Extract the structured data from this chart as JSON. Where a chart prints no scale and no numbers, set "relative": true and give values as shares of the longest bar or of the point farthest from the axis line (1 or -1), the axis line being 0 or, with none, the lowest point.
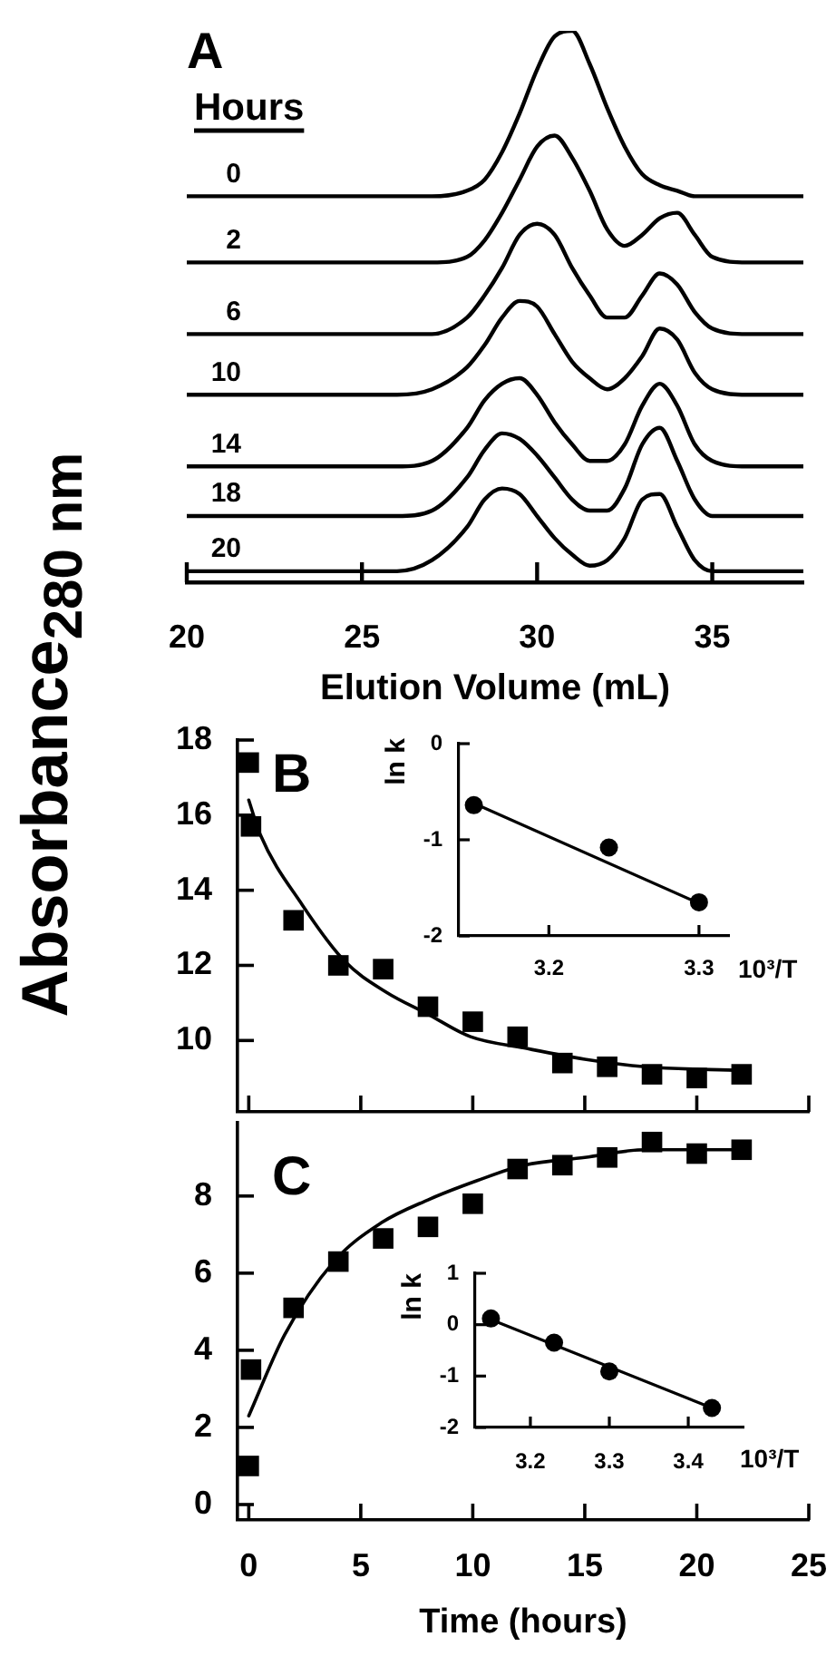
{
  "chart_data": [
    {
      "type": "line",
      "title": "A",
      "legend_title": "Hours",
      "xlabel": "Elution Volume (mL)",
      "relative": true,
      "tick_labels": "x",
      "xlim": [
        20,
        37.6
      ],
      "xticks": [
        20,
        25,
        30,
        35
      ],
      "x": [
        20,
        24,
        26,
        27,
        28,
        28.5,
        29,
        29.5,
        30,
        30.5,
        31,
        31.5,
        32,
        32.5,
        33,
        33.5,
        34,
        34.5,
        35,
        36,
        37.6
      ],
      "series": [
        {
          "name": "0",
          "color": "#000000",
          "values": [
            0.7,
            0.7,
            0.7,
            0.7,
            0.71,
            0.73,
            0.78,
            0.85,
            0.93,
            0.99,
            1.0,
            0.94,
            0.86,
            0.79,
            0.74,
            0.72,
            0.71,
            0.7,
            0.7,
            0.7,
            0.7
          ]
        },
        {
          "name": "2",
          "color": "#000000",
          "values": [
            0.58,
            0.58,
            0.58,
            0.58,
            0.59,
            0.62,
            0.67,
            0.73,
            0.79,
            0.81,
            0.77,
            0.71,
            0.64,
            0.61,
            0.63,
            0.66,
            0.67,
            0.63,
            0.59,
            0.58,
            0.58
          ]
        },
        {
          "name": "6",
          "color": "#000000",
          "values": [
            0.45,
            0.45,
            0.45,
            0.45,
            0.48,
            0.52,
            0.57,
            0.63,
            0.65,
            0.63,
            0.57,
            0.52,
            0.48,
            0.48,
            0.52,
            0.56,
            0.54,
            0.49,
            0.46,
            0.45,
            0.45
          ]
        },
        {
          "name": "10",
          "color": "#000000",
          "values": [
            0.34,
            0.34,
            0.34,
            0.35,
            0.39,
            0.43,
            0.48,
            0.51,
            0.5,
            0.45,
            0.4,
            0.37,
            0.35,
            0.37,
            0.41,
            0.46,
            0.44,
            0.38,
            0.35,
            0.34,
            0.34
          ]
        },
        {
          "name": "14",
          "color": "#000000",
          "values": [
            0.21,
            0.21,
            0.21,
            0.22,
            0.28,
            0.33,
            0.36,
            0.37,
            0.34,
            0.29,
            0.25,
            0.22,
            0.22,
            0.25,
            0.32,
            0.36,
            0.32,
            0.25,
            0.22,
            0.21,
            0.21
          ]
        },
        {
          "name": "18",
          "color": "#000000",
          "values": [
            0.12,
            0.12,
            0.12,
            0.13,
            0.19,
            0.24,
            0.27,
            0.26,
            0.23,
            0.19,
            0.15,
            0.13,
            0.13,
            0.17,
            0.25,
            0.28,
            0.22,
            0.15,
            0.12,
            0.12,
            0.12
          ]
        },
        {
          "name": "20",
          "color": "#000000",
          "values": [
            0.02,
            0.02,
            0.02,
            0.04,
            0.1,
            0.15,
            0.17,
            0.16,
            0.12,
            0.08,
            0.05,
            0.03,
            0.04,
            0.08,
            0.15,
            0.16,
            0.1,
            0.04,
            0.02,
            0.02,
            0.02
          ]
        }
      ]
    },
    {
      "type": "scatter",
      "title": "B",
      "ylabel": "Absorbance$_{280 nm}$",
      "tick_labels": "y",
      "xlim": [
        -0.5,
        25
      ],
      "xticks": [
        0,
        5,
        10,
        15,
        20,
        25
      ],
      "ylim": [
        8.1,
        18
      ],
      "yticks": [
        10,
        12,
        14,
        16,
        18
      ],
      "series": [
        {
          "type": "scatter",
          "marker": "square",
          "color": "#000000",
          "x": [
            0,
            0.1,
            2,
            4,
            6,
            8,
            10,
            12,
            14,
            16,
            18,
            20,
            22
          ],
          "values": [
            17.4,
            15.7,
            13.2,
            12.0,
            11.9,
            10.9,
            10.5,
            10.1,
            9.4,
            9.3,
            9.1,
            9.0,
            9.1
          ]
        },
        {
          "type": "line",
          "marker": "none",
          "color": "#000000",
          "x": [
            0,
            0.5,
            2.4,
            4.3,
            6.1,
            8,
            9.9,
            12.3,
            15,
            17.7,
            22
          ],
          "values": [
            16.4,
            15.5,
            13.6,
            12.1,
            11.3,
            10.7,
            10.1,
            9.8,
            9.5,
            9.3,
            9.2
          ]
        }
      ]
    },
    {
      "type": "scatter",
      "ylabel": "ln k",
      "xlabel": "10³/T",
      "xlim": [
        3.14,
        3.32
      ],
      "xticks": [
        3.2,
        3.3
      ],
      "ylim": [
        -2,
        0
      ],
      "yticks": [
        -2,
        -1,
        0
      ],
      "series": [
        {
          "type": "scatter",
          "marker": "circle",
          "color": "#000000",
          "x": [
            3.15,
            3.24,
            3.3
          ],
          "values": [
            -0.64,
            -1.08,
            -1.65
          ]
        },
        {
          "type": "line",
          "marker": "none",
          "color": "#000000",
          "x": [
            3.15,
            3.3
          ],
          "values": [
            -0.62,
            -1.66
          ]
        }
      ]
    },
    {
      "type": "scatter",
      "title": "C",
      "xlabel": "Time (hours)",
      "xlim": [
        -0.5,
        25
      ],
      "xticks": [
        0,
        5,
        10,
        15,
        20,
        25
      ],
      "ylim": [
        -0.4,
        9.9
      ],
      "yticks": [
        0,
        2,
        4,
        6,
        8
      ],
      "series": [
        {
          "type": "scatter",
          "marker": "square",
          "color": "#000000",
          "x": [
            0,
            0.1,
            2,
            4,
            6,
            8,
            10,
            12,
            14,
            16,
            18,
            20,
            22
          ],
          "values": [
            1.0,
            3.5,
            5.1,
            6.3,
            6.9,
            7.2,
            7.8,
            8.7,
            8.8,
            9.0,
            9.4,
            9.1,
            9.2
          ]
        },
        {
          "type": "line",
          "marker": "none",
          "color": "#000000",
          "x": [
            0,
            1.6,
            3.8,
            5.9,
            8,
            10.2,
            12.3,
            15,
            17.7,
            22
          ],
          "values": [
            2.3,
            4.4,
            6.3,
            7.3,
            7.9,
            8.4,
            8.8,
            9.0,
            9.2,
            9.2
          ]
        }
      ]
    },
    {
      "type": "scatter",
      "ylabel": "ln k",
      "xlabel": "10³/T",
      "xlim": [
        3.13,
        3.47
      ],
      "xticks": [
        3.2,
        3.3,
        3.4
      ],
      "ylim": [
        -2,
        1
      ],
      "yticks": [
        -2,
        -1,
        0,
        1
      ],
      "series": [
        {
          "type": "scatter",
          "marker": "circle",
          "color": "#000000",
          "x": [
            3.15,
            3.23,
            3.3,
            3.43
          ],
          "values": [
            0.12,
            -0.35,
            -0.91,
            -1.62
          ]
        },
        {
          "type": "line",
          "marker": "none",
          "color": "#000000",
          "x": [
            3.15,
            3.43
          ],
          "values": [
            0.1,
            -1.62
          ]
        }
      ]
    }
  ]
}
